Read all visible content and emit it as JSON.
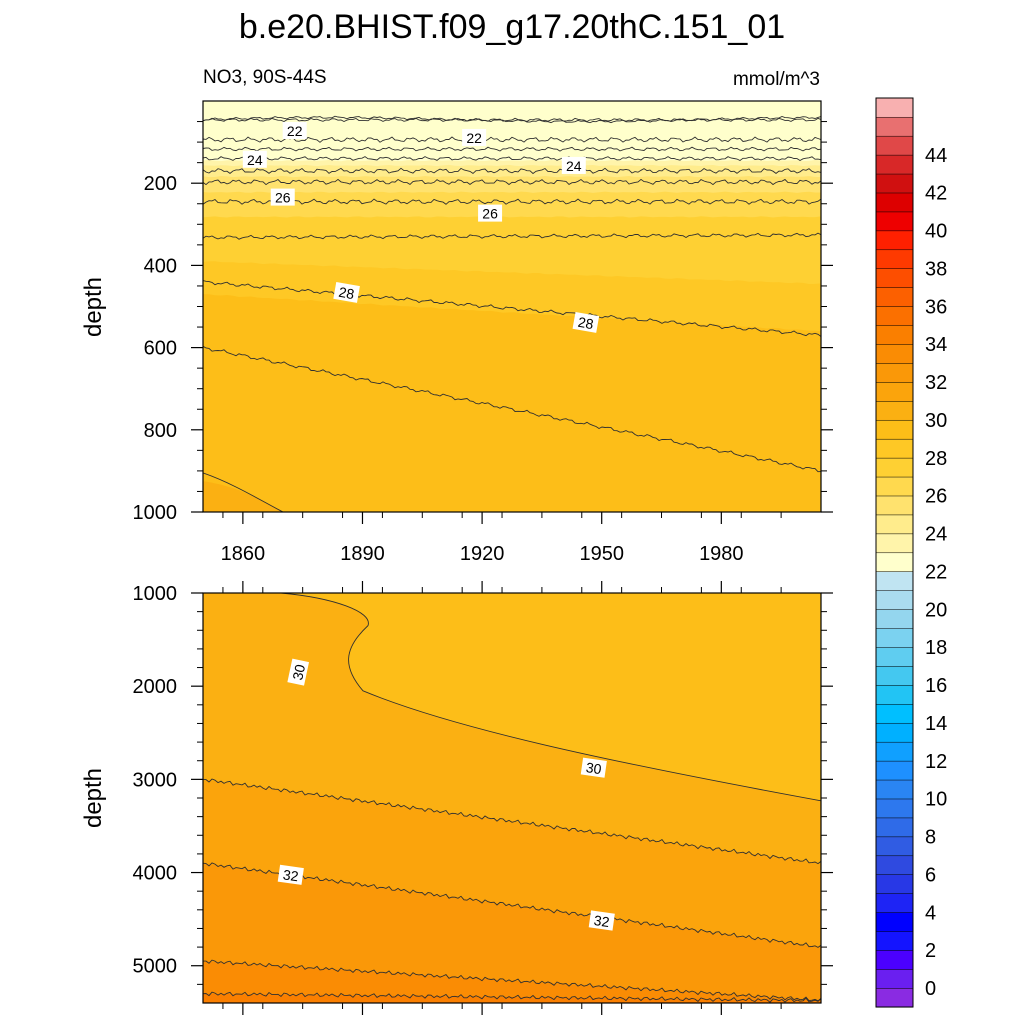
{
  "chart_data": {
    "type": "contour",
    "title": "b.e20.BHIST.f09_g17.20thC.151_01",
    "variable_label": "NO3, 90S-44S",
    "units_label": "mmol/m^3",
    "ylabel": "depth",
    "x_range": [
      1850,
      2005
    ],
    "x_ticks": [
      1860,
      1890,
      1920,
      1950,
      1980
    ],
    "panels": [
      {
        "name": "upper",
        "y_range": [
          0,
          1000
        ],
        "y_ticks": [
          200,
          400,
          600,
          800,
          1000
        ],
        "contour_labels": [
          {
            "value": 22,
            "x": 1873,
            "y": 73
          },
          {
            "value": 22,
            "x": 1918,
            "y": 90
          },
          {
            "value": 24,
            "x": 1863,
            "y": 143
          },
          {
            "value": 24,
            "x": 1943,
            "y": 158
          },
          {
            "value": 26,
            "x": 1870,
            "y": 235
          },
          {
            "value": 26,
            "x": 1922,
            "y": 274
          },
          {
            "value": 28,
            "x": 1886,
            "y": 467
          },
          {
            "value": 28,
            "x": 1946,
            "y": 540
          }
        ]
      },
      {
        "name": "lower",
        "y_range": [
          1000,
          5400
        ],
        "y_ticks": [
          1000,
          2000,
          3000,
          4000,
          5000
        ],
        "contour_labels": [
          {
            "value": 30,
            "x": 1874,
            "y": 1850
          },
          {
            "value": 30,
            "x": 1948,
            "y": 2880
          },
          {
            "value": 32,
            "x": 1872,
            "y": 4030
          },
          {
            "value": 32,
            "x": 1950,
            "y": 4520
          }
        ]
      }
    ],
    "colorbar": {
      "levels": [
        -1,
        0,
        1,
        2,
        3,
        4,
        5,
        6,
        7,
        8,
        9,
        10,
        11,
        12,
        13,
        14,
        15,
        16,
        17,
        18,
        19,
        20,
        21,
        22,
        23,
        24,
        25,
        26,
        27,
        28,
        29,
        30,
        31,
        32,
        33,
        34,
        35,
        36,
        37,
        38,
        39,
        40,
        41,
        42,
        43,
        44,
        45,
        46
      ],
      "tick_labels": [
        0,
        2,
        4,
        6,
        8,
        10,
        12,
        14,
        16,
        18,
        20,
        22,
        24,
        26,
        28,
        30,
        32,
        34,
        36,
        38,
        40,
        42,
        44
      ],
      "colors": [
        "#8a2be2",
        "#6a1ff0",
        "#4b00ff",
        "#1414ff",
        "#0000ff",
        "#1e24f5",
        "#2838e6",
        "#2f4ae0",
        "#305ce3",
        "#2f6be8",
        "#2d78ee",
        "#2a85f3",
        "#1e90ff",
        "#10a0ff",
        "#00b0ff",
        "#00bfff",
        "#22c4f4",
        "#44c8f0",
        "#5fcdf0",
        "#7bd2f0",
        "#94d6ee",
        "#aadcef",
        "#c0e4f2",
        "#ffffcc",
        "#fff4aa",
        "#ffec8c",
        "#ffe26e",
        "#ffd94e",
        "#fed033",
        "#fec825",
        "#fdbe18",
        "#fbb012",
        "#fba40c",
        "#fa9808",
        "#fa8c04",
        "#fa7f00",
        "#fb7000",
        "#fc6000",
        "#fd4e00",
        "#fe3a00",
        "#ff2000",
        "#ee0000",
        "#dd0000",
        "#d01010",
        "#d82828",
        "#e04848",
        "#e87070",
        "#f8b0b0"
      ]
    }
  }
}
